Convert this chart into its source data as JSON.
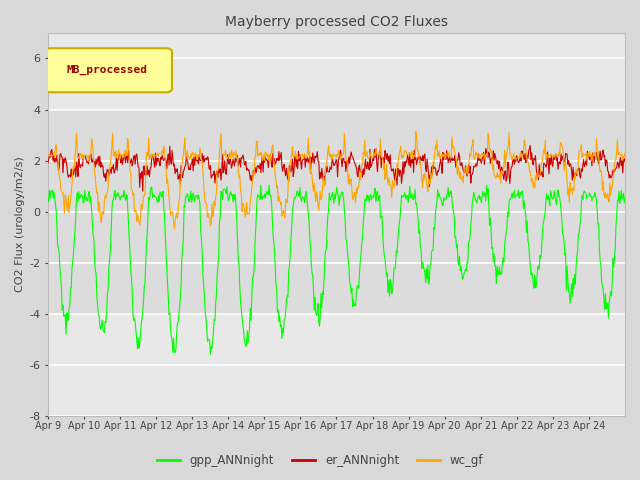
{
  "title": "Mayberry processed CO2 Fluxes",
  "ylabel": "CO2 Flux (urology/m2/s)",
  "legend_label": "MB_processed",
  "ylim": [
    -8,
    7
  ],
  "yticks": [
    -8,
    -6,
    -4,
    -2,
    0,
    2,
    4,
    6
  ],
  "series_labels": [
    "gpp_ANNnight",
    "er_ANNnight",
    "wc_gf"
  ],
  "series_colors": [
    "#00FF00",
    "#CC0000",
    "#FFA500"
  ],
  "background_color": "#D8D8D8",
  "plot_bg_color": "#E8E8E8",
  "inner_band_color": "#DCDCDC",
  "title_color": "#555555",
  "n_days": 16,
  "points_per_day": 48,
  "x_tick_labels": [
    "Apr 9",
    "Apr 10",
    "Apr 11",
    "Apr 12",
    "Apr 13",
    "Apr 14",
    "Apr 15",
    "Apr 16",
    "Apr 17",
    "Apr 18",
    "Apr 19",
    "Apr 20",
    "Apr 21",
    "Apr 22",
    "Apr 23",
    "Apr 24"
  ]
}
